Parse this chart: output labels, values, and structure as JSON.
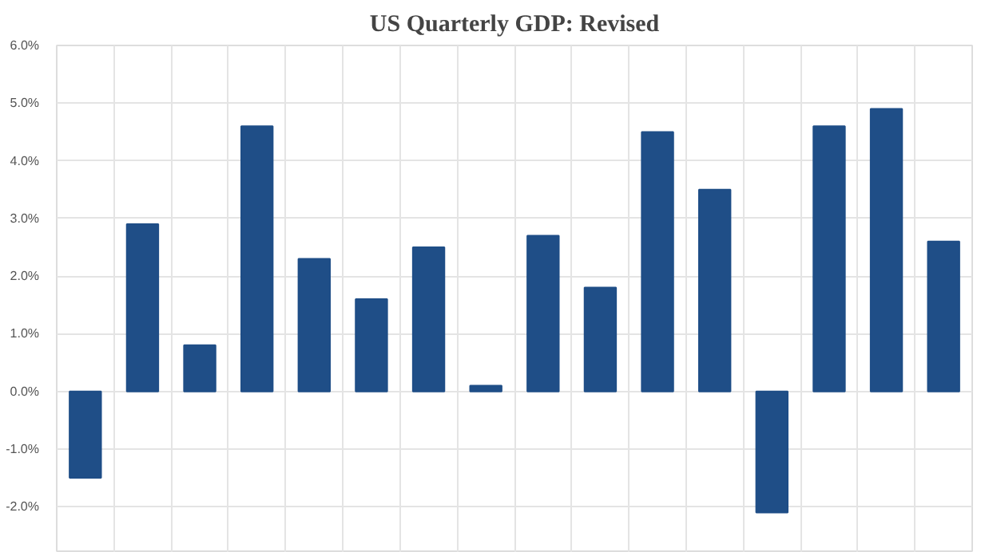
{
  "chart_data": {
    "type": "bar",
    "title": "US Quarterly GDP: Revised",
    "categories": [
      null,
      null,
      null,
      null,
      null,
      null,
      null,
      null,
      null,
      null,
      null,
      null,
      null,
      null,
      null,
      null
    ],
    "values": [
      -1.5,
      2.9,
      0.8,
      4.6,
      2.3,
      1.6,
      2.5,
      0.1,
      2.7,
      1.8,
      4.5,
      3.5,
      -2.1,
      4.6,
      4.9,
      2.6
    ],
    "color": "#1f4e87",
    "ylim": [
      -2.8,
      6.0
    ],
    "yticks": [
      {
        "value": -2,
        "label": "-2.0%"
      },
      {
        "value": -1,
        "label": "-1.0%"
      },
      {
        "value": 0,
        "label": "0.0%"
      },
      {
        "value": 1,
        "label": "1.0%"
      },
      {
        "value": 2,
        "label": "2.0%"
      },
      {
        "value": 3,
        "label": "3.0%"
      },
      {
        "value": 4,
        "label": "4.0%"
      },
      {
        "value": 5,
        "label": "5.0%"
      },
      {
        "value": 6,
        "label": "6.0%"
      }
    ],
    "grid": true,
    "tick_labels": "y"
  }
}
